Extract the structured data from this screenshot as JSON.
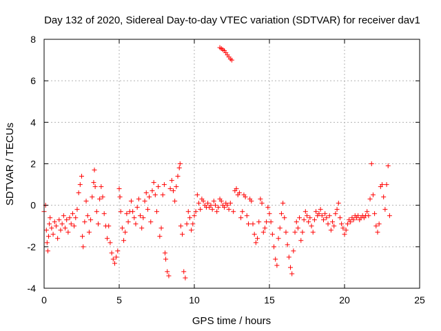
{
  "chart_data": {
    "type": "scatter",
    "title": "Day 132 of 2020, Sidereal Day-to-day VTEC variation (SDTVAR) for receiver dav1",
    "xlabel": "GPS time / hours",
    "ylabel": "SDTVAR / TECUs",
    "xlim": [
      0,
      25
    ],
    "ylim": [
      -4,
      8
    ],
    "xticks": [
      0,
      5,
      10,
      15,
      20,
      25
    ],
    "yticks": [
      -4,
      -2,
      0,
      2,
      4,
      6,
      8
    ],
    "grid": true,
    "marker": "+",
    "color": "#ff0000",
    "series": [
      {
        "name": "SDTVAR",
        "points": [
          [
            0.0,
            -0.3
          ],
          [
            0.1,
            0.0
          ],
          [
            0.15,
            -1.2
          ],
          [
            0.2,
            -1.8
          ],
          [
            0.25,
            -2.2
          ],
          [
            0.3,
            -1.5
          ],
          [
            0.35,
            -0.9
          ],
          [
            0.4,
            -0.6
          ],
          [
            0.5,
            -1.1
          ],
          [
            0.6,
            -1.4
          ],
          [
            0.7,
            -0.8
          ],
          [
            0.8,
            -1.0
          ],
          [
            0.9,
            -1.6
          ],
          [
            1.0,
            -0.7
          ],
          [
            1.1,
            -1.2
          ],
          [
            1.2,
            -0.9
          ],
          [
            1.3,
            -0.5
          ],
          [
            1.4,
            -1.1
          ],
          [
            1.5,
            -0.7
          ],
          [
            1.6,
            -1.3
          ],
          [
            1.7,
            -0.6
          ],
          [
            1.8,
            -0.9
          ],
          [
            1.9,
            -0.4
          ],
          [
            2.0,
            -1.0
          ],
          [
            2.1,
            -0.6
          ],
          [
            2.2,
            -0.2
          ],
          [
            2.3,
            0.6
          ],
          [
            2.4,
            1.0
          ],
          [
            2.5,
            1.4
          ],
          [
            2.55,
            -1.5
          ],
          [
            2.6,
            -2.0
          ],
          [
            2.7,
            -0.8
          ],
          [
            2.8,
            0.2
          ],
          [
            2.9,
            -0.5
          ],
          [
            3.0,
            -1.3
          ],
          [
            3.1,
            -0.7
          ],
          [
            3.2,
            0.4
          ],
          [
            3.3,
            1.1
          ],
          [
            3.35,
            1.7
          ],
          [
            3.4,
            0.9
          ],
          [
            3.5,
            -0.3
          ],
          [
            3.6,
            -0.9
          ],
          [
            3.7,
            0.3
          ],
          [
            3.8,
            0.9
          ],
          [
            3.9,
            0.4
          ],
          [
            4.0,
            -0.4
          ],
          [
            4.1,
            -1.0
          ],
          [
            4.2,
            -1.6
          ],
          [
            4.3,
            -1.0
          ],
          [
            4.4,
            -1.8
          ],
          [
            4.5,
            -2.3
          ],
          [
            4.6,
            -2.6
          ],
          [
            4.7,
            -2.8
          ],
          [
            4.8,
            -2.5
          ],
          [
            4.9,
            -2.2
          ],
          [
            5.0,
            0.8
          ],
          [
            5.05,
            0.4
          ],
          [
            5.1,
            -0.3
          ],
          [
            5.2,
            -1.1
          ],
          [
            5.3,
            -1.7
          ],
          [
            5.4,
            -1.3
          ],
          [
            5.5,
            -0.4
          ],
          [
            5.6,
            -0.8
          ],
          [
            5.7,
            -0.3
          ],
          [
            5.8,
            0.2
          ],
          [
            5.9,
            -0.3
          ],
          [
            6.0,
            -0.6
          ],
          [
            6.1,
            -0.9
          ],
          [
            6.2,
            -0.1
          ],
          [
            6.3,
            0.3
          ],
          [
            6.4,
            -0.5
          ],
          [
            6.5,
            -1.1
          ],
          [
            6.6,
            -0.6
          ],
          [
            6.7,
            0.2
          ],
          [
            6.8,
            0.6
          ],
          [
            6.9,
            -0.2
          ],
          [
            7.0,
            0.4
          ],
          [
            7.1,
            -0.8
          ],
          [
            7.2,
            0.7
          ],
          [
            7.3,
            1.1
          ],
          [
            7.4,
            0.5
          ],
          [
            7.5,
            -0.3
          ],
          [
            7.6,
            0.9
          ],
          [
            7.7,
            -1.5
          ],
          [
            7.8,
            -1.1
          ],
          [
            7.9,
            0.5
          ],
          [
            8.0,
            1.0
          ],
          [
            8.05,
            -2.3
          ],
          [
            8.1,
            -2.6
          ],
          [
            8.2,
            -3.2
          ],
          [
            8.3,
            -3.4
          ],
          [
            8.4,
            0.8
          ],
          [
            8.5,
            1.2
          ],
          [
            8.6,
            0.7
          ],
          [
            8.7,
            0.2
          ],
          [
            8.8,
            0.9
          ],
          [
            8.9,
            1.4
          ],
          [
            9.0,
            1.8
          ],
          [
            9.05,
            2.0
          ],
          [
            9.1,
            -1.0
          ],
          [
            9.2,
            -1.4
          ],
          [
            9.3,
            -3.2
          ],
          [
            9.4,
            -3.5
          ],
          [
            9.5,
            -0.9
          ],
          [
            9.6,
            -0.3
          ],
          [
            9.7,
            -0.6
          ],
          [
            9.8,
            -1.2
          ],
          [
            9.9,
            -0.9
          ],
          [
            10.0,
            -0.5
          ],
          [
            10.1,
            -0.3
          ],
          [
            10.2,
            0.5
          ],
          [
            10.3,
            0.1
          ],
          [
            10.4,
            -0.2
          ],
          [
            10.5,
            0.3
          ],
          [
            10.6,
            0.2
          ],
          [
            10.7,
            0.0
          ],
          [
            10.8,
            -0.1
          ],
          [
            10.9,
            0.1
          ],
          [
            11.0,
            -0.1
          ],
          [
            11.1,
            0.0
          ],
          [
            11.2,
            -0.2
          ],
          [
            11.3,
            0.2
          ],
          [
            11.4,
            0.0
          ],
          [
            11.5,
            -0.3
          ],
          [
            11.6,
            -0.1
          ],
          [
            11.7,
            0.3
          ],
          [
            11.8,
            0.2
          ],
          [
            11.9,
            0.0
          ],
          [
            12.0,
            -0.1
          ],
          [
            12.1,
            0.1
          ],
          [
            12.2,
            0.0
          ],
          [
            12.3,
            -0.2
          ],
          [
            12.4,
            0.1
          ],
          [
            11.7,
            7.6
          ],
          [
            11.8,
            7.55
          ],
          [
            11.9,
            7.5
          ],
          [
            12.0,
            7.45
          ],
          [
            12.1,
            7.35
          ],
          [
            12.2,
            7.25
          ],
          [
            12.3,
            7.15
          ],
          [
            12.4,
            7.05
          ],
          [
            12.5,
            7.0
          ],
          [
            12.6,
            -0.3
          ],
          [
            12.7,
            0.7
          ],
          [
            12.8,
            0.8
          ],
          [
            12.9,
            0.5
          ],
          [
            13.0,
            0.6
          ],
          [
            13.1,
            -0.6
          ],
          [
            13.2,
            -0.3
          ],
          [
            13.3,
            0.5
          ],
          [
            13.4,
            0.4
          ],
          [
            13.5,
            -0.5
          ],
          [
            13.6,
            -0.9
          ],
          [
            13.7,
            0.3
          ],
          [
            13.8,
            0.2
          ],
          [
            13.9,
            -0.9
          ],
          [
            14.0,
            -1.4
          ],
          [
            14.1,
            -1.8
          ],
          [
            14.2,
            -1.6
          ],
          [
            14.3,
            -0.8
          ],
          [
            14.4,
            0.3
          ],
          [
            14.5,
            0.1
          ],
          [
            14.6,
            -1.3
          ],
          [
            14.7,
            -1.1
          ],
          [
            14.8,
            -0.8
          ],
          [
            14.9,
            -0.1
          ],
          [
            15.0,
            -0.4
          ],
          [
            15.1,
            -0.8
          ],
          [
            15.2,
            -1.4
          ],
          [
            15.3,
            -2.0
          ],
          [
            15.4,
            -2.6
          ],
          [
            15.5,
            -2.9
          ],
          [
            15.6,
            -1.6
          ],
          [
            15.7,
            -1.1
          ],
          [
            15.8,
            -0.4
          ],
          [
            15.9,
            0.1
          ],
          [
            16.0,
            -0.6
          ],
          [
            16.1,
            -1.3
          ],
          [
            16.2,
            -1.9
          ],
          [
            16.3,
            -2.5
          ],
          [
            16.4,
            -3.0
          ],
          [
            16.5,
            -3.3
          ],
          [
            16.6,
            -2.2
          ],
          [
            16.7,
            -1.3
          ],
          [
            16.8,
            -0.8
          ],
          [
            16.9,
            -1.1
          ],
          [
            17.0,
            -0.6
          ],
          [
            17.1,
            -1.7
          ],
          [
            17.2,
            -1.3
          ],
          [
            17.3,
            -0.7
          ],
          [
            17.4,
            -0.3
          ],
          [
            17.5,
            -0.5
          ],
          [
            17.6,
            -0.8
          ],
          [
            17.7,
            -0.6
          ],
          [
            17.8,
            -1.0
          ],
          [
            17.9,
            -1.3
          ],
          [
            18.0,
            -0.7
          ],
          [
            18.1,
            -0.3
          ],
          [
            18.2,
            -0.5
          ],
          [
            18.3,
            -0.4
          ],
          [
            18.4,
            -0.2
          ],
          [
            18.5,
            -0.5
          ],
          [
            18.6,
            -0.7
          ],
          [
            18.7,
            -0.4
          ],
          [
            18.8,
            -0.6
          ],
          [
            18.9,
            -0.9
          ],
          [
            19.0,
            -0.5
          ],
          [
            19.1,
            -1.2
          ],
          [
            19.2,
            -0.8
          ],
          [
            19.3,
            -1.0
          ],
          [
            19.4,
            -0.4
          ],
          [
            19.5,
            -0.2
          ],
          [
            19.6,
            0.1
          ],
          [
            19.7,
            -0.6
          ],
          [
            19.8,
            -0.9
          ],
          [
            19.9,
            -1.1
          ],
          [
            20.0,
            -1.4
          ],
          [
            20.1,
            -1.2
          ],
          [
            20.2,
            -0.9
          ],
          [
            20.3,
            -0.7
          ],
          [
            20.4,
            -0.8
          ],
          [
            20.5,
            -0.6
          ],
          [
            20.6,
            -0.7
          ],
          [
            20.7,
            -0.5
          ],
          [
            20.8,
            -0.6
          ],
          [
            20.9,
            -0.5
          ],
          [
            21.0,
            -0.7
          ],
          [
            21.1,
            -0.6
          ],
          [
            21.2,
            -0.5
          ],
          [
            21.3,
            -0.6
          ],
          [
            21.4,
            -0.5
          ],
          [
            21.5,
            -0.3
          ],
          [
            21.6,
            -0.5
          ],
          [
            21.7,
            0.3
          ],
          [
            21.8,
            2.0
          ],
          [
            21.9,
            0.5
          ],
          [
            22.0,
            -0.4
          ],
          [
            22.1,
            -1.0
          ],
          [
            22.2,
            -1.3
          ],
          [
            22.3,
            -0.9
          ],
          [
            22.4,
            0.9
          ],
          [
            22.5,
            1.0
          ],
          [
            22.6,
            0.4
          ],
          [
            22.7,
            -0.2
          ],
          [
            22.8,
            1.0
          ],
          [
            22.9,
            1.9
          ],
          [
            23.0,
            -0.5
          ]
        ]
      }
    ]
  }
}
